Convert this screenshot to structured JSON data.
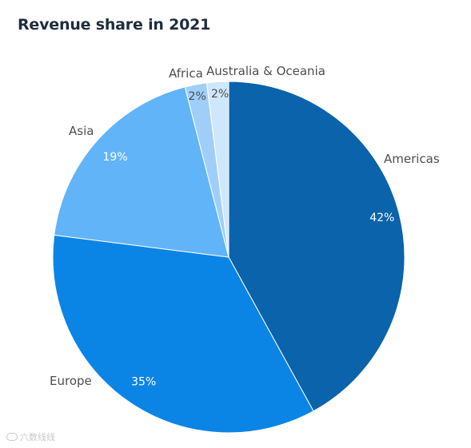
{
  "chart_data": {
    "type": "pie",
    "title": "Revenue share in 2021",
    "slices": [
      {
        "label": "Americas",
        "value": 42,
        "pct_label": "42%",
        "color": "#0a63ab",
        "pct_color": "#ffffff"
      },
      {
        "label": "Europe",
        "value": 35,
        "pct_label": "35%",
        "color": "#0b85e5",
        "pct_color": "#ffffff"
      },
      {
        "label": "Asia",
        "value": 19,
        "pct_label": "19%",
        "color": "#62b4f8",
        "pct_color": "#ffffff"
      },
      {
        "label": "Africa",
        "value": 2,
        "pct_label": "2%",
        "color": "#9fcff9",
        "pct_color": "#4d4d4d"
      },
      {
        "label": "Australia & Oceania",
        "value": 2,
        "pct_label": "2%",
        "color": "#cfe7fb",
        "pct_color": "#4d4d4d"
      }
    ],
    "start": "12 o'clock",
    "direction": "clockwise",
    "legend": "none"
  },
  "watermark": "六数线线"
}
